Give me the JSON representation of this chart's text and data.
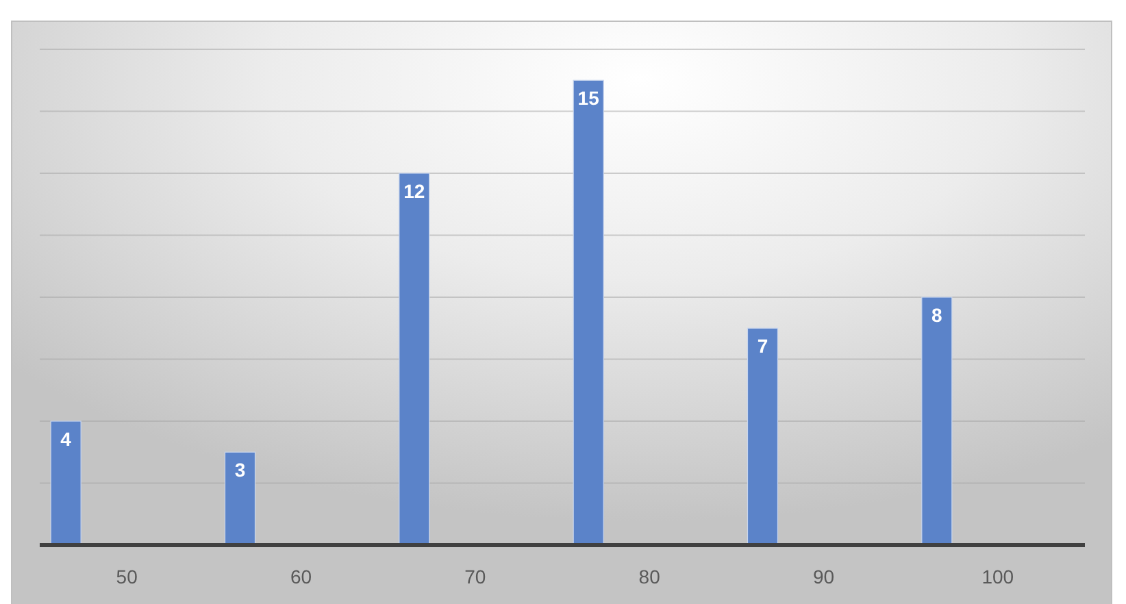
{
  "chart_data": {
    "type": "bar",
    "x": [
      46.5,
      56.5,
      66.5,
      76.5,
      86.5,
      96.5
    ],
    "values": [
      4,
      3,
      12,
      15,
      7,
      8
    ],
    "color": "#5b83c9",
    "xlim": [
      45,
      105
    ],
    "xticks": [
      50,
      60,
      70,
      80,
      90,
      100
    ],
    "ylim": [
      0,
      16
    ],
    "yticks": [
      {
        "value": 0,
        "label": null
      },
      {
        "value": 2,
        "label": null
      },
      {
        "value": 4,
        "label": null
      },
      {
        "value": 6,
        "label": null
      },
      {
        "value": 8,
        "label": null
      },
      {
        "value": 10,
        "label": null
      },
      {
        "value": 12,
        "label": null
      },
      {
        "value": 14,
        "label": null
      },
      {
        "value": 16,
        "label": null
      }
    ],
    "grid": "y",
    "tick_labels": "x",
    "data_labels": true
  }
}
